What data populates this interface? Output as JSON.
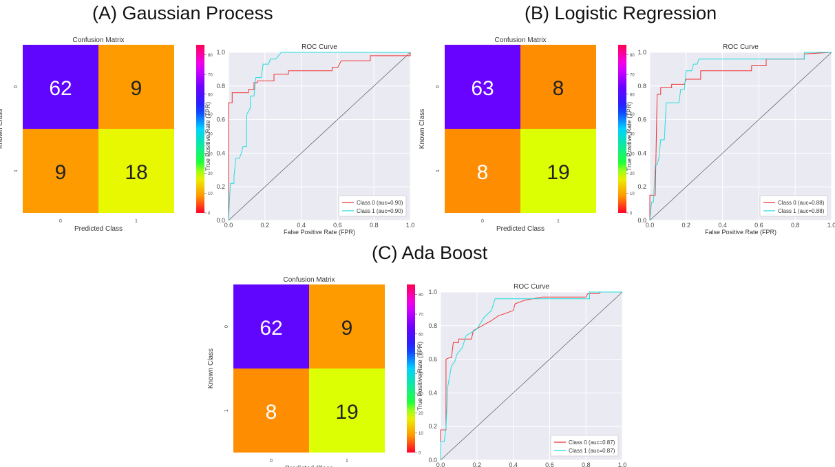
{
  "panels": [
    {
      "title": "(A) Gaussian Process",
      "confusion": {
        "title": "Confusion Matrix",
        "ylabel": "Known Class",
        "xlabel": "Predicted Class",
        "row_labels": [
          "0",
          "1"
        ],
        "col_labels": [
          "0",
          "1"
        ],
        "cells": [
          [
            62,
            9
          ],
          [
            9,
            18
          ]
        ],
        "colorbar_ticks": [
          "0",
          "10",
          "20",
          "30",
          "40",
          "50",
          "60",
          "70",
          "80"
        ]
      },
      "roc": {
        "title": "ROC Curve",
        "xlabel": "False Positive Rate (FPR)",
        "ylabel": "True Positive Rate (TPR)",
        "ticks": [
          "0.0",
          "0.2",
          "0.4",
          "0.6",
          "0.8",
          "1.0"
        ],
        "legend": [
          "Class 0 (auc=0.90)",
          "Class 1 (auc=0.90)"
        ]
      }
    },
    {
      "title": "(B) Logistic Regression",
      "confusion": {
        "title": "Confusion Matrix",
        "ylabel": "Known Class",
        "xlabel": "Predicted Class",
        "row_labels": [
          "0",
          "1"
        ],
        "col_labels": [
          "0",
          "1"
        ],
        "cells": [
          [
            63,
            8
          ],
          [
            8,
            19
          ]
        ],
        "colorbar_ticks": [
          "0",
          "10",
          "20",
          "30",
          "40",
          "50",
          "60",
          "70",
          "80"
        ]
      },
      "roc": {
        "title": "ROC Curve",
        "xlabel": "False Positive Rate (FPR)",
        "ylabel": "True Positive Rate (TPR)",
        "ticks": [
          "0.0",
          "0.2",
          "0.4",
          "0.6",
          "0.8",
          "1.0"
        ],
        "legend": [
          "Class 0 (auc=0.88)",
          "Class 1 (auc=0.88)"
        ]
      }
    },
    {
      "title": "(C) Ada Boost",
      "confusion": {
        "title": "Confusion Matrix",
        "ylabel": "Known Class",
        "xlabel": "Predicted Class",
        "row_labels": [
          "0",
          "1"
        ],
        "col_labels": [
          "0",
          "1"
        ],
        "cells": [
          [
            62,
            9
          ],
          [
            8,
            19
          ]
        ],
        "colorbar_ticks": [
          "0",
          "10",
          "20",
          "30",
          "40",
          "50",
          "60",
          "70",
          "80"
        ]
      },
      "roc": {
        "title": "ROC Curve",
        "xlabel": "False Positive Rate (FPR)",
        "ylabel": "True Positive Rate (TPR)",
        "ticks": [
          "0.0",
          "0.2",
          "0.4",
          "0.6",
          "0.8",
          "1.0"
        ],
        "legend": [
          "Class 0 (auc=0.87)",
          "Class 1 (auc=0.87)"
        ]
      }
    }
  ],
  "colors": {
    "class0": "#ee3333",
    "class1": "#22dddd",
    "diagonal": "#555555",
    "roc_background": "#eaeaf2",
    "colormap": "gist_rainbow_r"
  },
  "chart_data": [
    {
      "type": "heatmap",
      "title": "Confusion Matrix",
      "xlabel": "Predicted Class",
      "ylabel": "Known Class",
      "categories": [
        "0",
        "1"
      ],
      "values": [
        [
          62,
          9
        ],
        [
          9,
          18
        ]
      ],
      "colorbar_range": [
        0,
        85
      ]
    },
    {
      "type": "line",
      "title": "ROC Curve",
      "xlabel": "False Positive Rate (FPR)",
      "ylabel": "True Positive Rate (TPR)",
      "xlim": [
        0,
        1
      ],
      "ylim": [
        0,
        1
      ],
      "grid": true,
      "legend_position": "bottom-right",
      "series": [
        {
          "name": "Class 0 (auc=0.90)",
          "color": "#ee3333",
          "points": [
            [
              0,
              0
            ],
            [
              0,
              0.7
            ],
            [
              0.02,
              0.7
            ],
            [
              0.02,
              0.76
            ],
            [
              0.11,
              0.76
            ],
            [
              0.11,
              0.78
            ],
            [
              0.14,
              0.78
            ],
            [
              0.14,
              0.82
            ],
            [
              0.16,
              0.82
            ],
            [
              0.16,
              0.83
            ],
            [
              0.25,
              0.83
            ],
            [
              0.25,
              0.87
            ],
            [
              0.33,
              0.87
            ],
            [
              0.33,
              0.89
            ],
            [
              0.57,
              0.89
            ],
            [
              0.57,
              0.91
            ],
            [
              0.6,
              0.91
            ],
            [
              0.62,
              0.95
            ],
            [
              0.78,
              0.95
            ],
            [
              0.78,
              0.98
            ],
            [
              1.0,
              0.98
            ],
            [
              1.0,
              1.0
            ]
          ]
        },
        {
          "name": "Class 1 (auc=0.90)",
          "color": "#22dddd",
          "points": [
            [
              0,
              0
            ],
            [
              0.01,
              0.22
            ],
            [
              0.03,
              0.22
            ],
            [
              0.03,
              0.26
            ],
            [
              0.04,
              0.37
            ],
            [
              0.06,
              0.37
            ],
            [
              0.07,
              0.4
            ],
            [
              0.08,
              0.44
            ],
            [
              0.1,
              0.44
            ],
            [
              0.1,
              0.63
            ],
            [
              0.12,
              0.67
            ],
            [
              0.12,
              0.74
            ],
            [
              0.14,
              0.74
            ],
            [
              0.15,
              0.85
            ],
            [
              0.18,
              0.85
            ],
            [
              0.19,
              0.93
            ],
            [
              0.22,
              0.93
            ],
            [
              0.23,
              0.96
            ],
            [
              0.26,
              0.96
            ],
            [
              0.29,
              1.0
            ],
            [
              1.0,
              1.0
            ]
          ]
        }
      ]
    },
    {
      "type": "heatmap",
      "title": "Confusion Matrix",
      "xlabel": "Predicted Class",
      "ylabel": "Known Class",
      "categories": [
        "0",
        "1"
      ],
      "values": [
        [
          63,
          8
        ],
        [
          8,
          19
        ]
      ],
      "colorbar_range": [
        0,
        85
      ]
    },
    {
      "type": "line",
      "title": "ROC Curve",
      "xlabel": "False Positive Rate (FPR)",
      "ylabel": "True Positive Rate (TPR)",
      "xlim": [
        0,
        1
      ],
      "ylim": [
        0,
        1
      ],
      "grid": true,
      "legend_position": "bottom-right",
      "series": [
        {
          "name": "Class 0 (auc=0.88)",
          "color": "#ee3333",
          "points": [
            [
              0,
              0
            ],
            [
              0,
              0.15
            ],
            [
              0.03,
              0.15
            ],
            [
              0.04,
              0.75
            ],
            [
              0.06,
              0.75
            ],
            [
              0.06,
              0.79
            ],
            [
              0.12,
              0.79
            ],
            [
              0.12,
              0.81
            ],
            [
              0.19,
              0.81
            ],
            [
              0.2,
              0.84
            ],
            [
              0.28,
              0.84
            ],
            [
              0.28,
              0.89
            ],
            [
              0.56,
              0.89
            ],
            [
              0.56,
              0.92
            ],
            [
              0.64,
              0.92
            ],
            [
              0.64,
              0.96
            ],
            [
              0.85,
              0.96
            ],
            [
              0.85,
              0.99
            ],
            [
              1.0,
              1.0
            ]
          ]
        },
        {
          "name": "Class 1 (auc=0.88)",
          "color": "#22dddd",
          "points": [
            [
              0,
              0
            ],
            [
              0.01,
              0.11
            ],
            [
              0.02,
              0.11
            ],
            [
              0.03,
              0.33
            ],
            [
              0.04,
              0.33
            ],
            [
              0.05,
              0.37
            ],
            [
              0.06,
              0.48
            ],
            [
              0.08,
              0.48
            ],
            [
              0.09,
              0.7
            ],
            [
              0.16,
              0.7
            ],
            [
              0.17,
              0.78
            ],
            [
              0.19,
              0.78
            ],
            [
              0.2,
              0.89
            ],
            [
              0.23,
              0.89
            ],
            [
              0.24,
              0.93
            ],
            [
              0.26,
              0.93
            ],
            [
              0.27,
              0.96
            ],
            [
              0.85,
              0.96
            ],
            [
              0.85,
              1.0
            ],
            [
              1.0,
              1.0
            ]
          ]
        }
      ]
    },
    {
      "type": "heatmap",
      "title": "Confusion Matrix",
      "xlabel": "Predicted Class",
      "ylabel": "Known Class",
      "categories": [
        "0",
        "1"
      ],
      "values": [
        [
          62,
          9
        ],
        [
          8,
          19
        ]
      ],
      "colorbar_range": [
        0,
        85
      ]
    },
    {
      "type": "line",
      "title": "ROC Curve",
      "xlabel": "False Positive Rate (FPR)",
      "ylabel": "True Positive Rate (TPR)",
      "xlim": [
        0,
        1
      ],
      "ylim": [
        0,
        1
      ],
      "grid": true,
      "legend_position": "bottom-right",
      "series": [
        {
          "name": "Class 0 (auc=0.87)",
          "color": "#ee3333",
          "points": [
            [
              0,
              0
            ],
            [
              0,
              0.18
            ],
            [
              0.03,
              0.18
            ],
            [
              0.03,
              0.6
            ],
            [
              0.05,
              0.61
            ],
            [
              0.06,
              0.61
            ],
            [
              0.07,
              0.7
            ],
            [
              0.1,
              0.7
            ],
            [
              0.1,
              0.72
            ],
            [
              0.17,
              0.72
            ],
            [
              0.18,
              0.77
            ],
            [
              0.28,
              0.83
            ],
            [
              0.32,
              0.86
            ],
            [
              0.35,
              0.87
            ],
            [
              0.4,
              0.89
            ],
            [
              0.41,
              0.93
            ],
            [
              0.46,
              0.95
            ],
            [
              0.56,
              0.97
            ],
            [
              0.8,
              0.97
            ],
            [
              0.81,
              0.99
            ],
            [
              0.87,
              0.99
            ],
            [
              0.88,
              1.0
            ],
            [
              1.0,
              1.0
            ]
          ]
        },
        {
          "name": "Class 1 (auc=0.87)",
          "color": "#22dddd",
          "points": [
            [
              0,
              0
            ],
            [
              0,
              0.11
            ],
            [
              0.02,
              0.11
            ],
            [
              0.03,
              0.19
            ],
            [
              0.04,
              0.44
            ],
            [
              0.05,
              0.5
            ],
            [
              0.06,
              0.56
            ],
            [
              0.08,
              0.59
            ],
            [
              0.09,
              0.63
            ],
            [
              0.12,
              0.67
            ],
            [
              0.14,
              0.74
            ],
            [
              0.2,
              0.78
            ],
            [
              0.24,
              0.85
            ],
            [
              0.28,
              0.89
            ],
            [
              0.3,
              0.96
            ],
            [
              0.37,
              0.96
            ],
            [
              0.4,
              0.96
            ],
            [
              0.82,
              0.96
            ],
            [
              0.82,
              1.0
            ],
            [
              1.0,
              1.0
            ]
          ]
        }
      ]
    }
  ]
}
